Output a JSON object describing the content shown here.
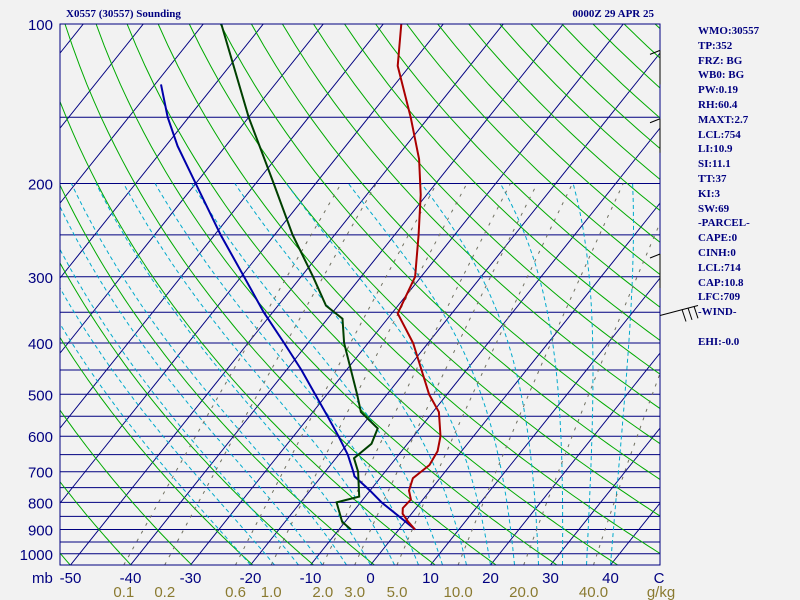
{
  "header": {
    "station_title": "X0557 (30557) Sounding",
    "valid_time": "0000Z 29 APR 25"
  },
  "stats": [
    "WMO:30557",
    "TP:352",
    "FRZ: BG",
    "WB0: BG",
    "PW:0.19",
    "RH:60.4",
    "MAXT:2.7",
    "LCL:754",
    "LI:10.9",
    "SI:11.1",
    "TT:37",
    "KI:3",
    "SW:69",
    "-PARCEL-",
    "CAPE:0",
    "CINH:0",
    "LCL:714",
    "CAP:10.8",
    "LFC:709",
    "-WIND-",
    "",
    "EHI:-0.0"
  ],
  "colors": {
    "background": "#f2f2f2",
    "isobar": "#000080",
    "isotherm": "#000080",
    "dry_adiabat": "#00aa00",
    "moist_adiabat": "#00aacc",
    "mixing_ratio": "#707060",
    "temperature": "#aa0000",
    "dewpoint": "#004000",
    "parcel": "#0000aa",
    "text": "#000080",
    "mixing_label": "#8a7a30"
  },
  "chart_data": {
    "type": "skew-t",
    "pressure_unit_label": "mb",
    "pressure_ticks": [
      100,
      200,
      300,
      400,
      500,
      600,
      700,
      800,
      900,
      1000
    ],
    "isobars": [
      100,
      150,
      200,
      250,
      300,
      350,
      400,
      450,
      500,
      550,
      600,
      650,
      700,
      750,
      800,
      850,
      900,
      950,
      1000
    ],
    "temperature_ticks": [
      "-50",
      "-40",
      "-30",
      "-20",
      "-10",
      "0",
      "10",
      "20",
      "30",
      "40",
      "C"
    ],
    "temperature_tick_values": [
      -50,
      -40,
      -30,
      -20,
      -10,
      0,
      10,
      20,
      30,
      40
    ],
    "mixing_ratio_unit_label": "g/kg",
    "mixing_ratio_ticks": [
      "0.1",
      "0.2",
      "0.6",
      "1.0",
      "2.0",
      "3.0",
      "5.0",
      "10.0",
      "20.0",
      "40.0"
    ],
    "mixing_ratio_values": [
      0.1,
      0.2,
      0.6,
      1.0,
      2.0,
      3.0,
      5.0,
      10.0,
      20.0,
      40.0
    ],
    "temperature": [
      {
        "p": 900,
        "t": 2.7
      },
      {
        "p": 870,
        "t": 0.5
      },
      {
        "p": 840,
        "t": -1.5
      },
      {
        "p": 820,
        "t": -2.2
      },
      {
        "p": 790,
        "t": -2.0
      },
      {
        "p": 760,
        "t": -3.5
      },
      {
        "p": 720,
        "t": -4.5
      },
      {
        "p": 680,
        "t": -3.5
      },
      {
        "p": 640,
        "t": -4.0
      },
      {
        "p": 600,
        "t": -5.5
      },
      {
        "p": 540,
        "t": -9.0
      },
      {
        "p": 500,
        "t": -13.0
      },
      {
        "p": 400,
        "t": -22.5
      },
      {
        "p": 352,
        "t": -29.0
      },
      {
        "p": 300,
        "t": -31.0
      },
      {
        "p": 250,
        "t": -36.0
      },
      {
        "p": 210,
        "t": -41.0
      },
      {
        "p": 180,
        "t": -46.0
      },
      {
        "p": 150,
        "t": -53.0
      },
      {
        "p": 120,
        "t": -62.0
      },
      {
        "p": 100,
        "t": -67.0
      }
    ],
    "dewpoint": [
      {
        "p": 900,
        "t": -8.0
      },
      {
        "p": 870,
        "t": -10.5
      },
      {
        "p": 800,
        "t": -14.0
      },
      {
        "p": 780,
        "t": -11.0
      },
      {
        "p": 700,
        "t": -14.5
      },
      {
        "p": 660,
        "t": -17.0
      },
      {
        "p": 620,
        "t": -16.0
      },
      {
        "p": 580,
        "t": -17.0
      },
      {
        "p": 540,
        "t": -22.0
      },
      {
        "p": 500,
        "t": -25.0
      },
      {
        "p": 400,
        "t": -34.0
      },
      {
        "p": 360,
        "t": -37.5
      },
      {
        "p": 340,
        "t": -42.0
      },
      {
        "p": 300,
        "t": -48.0
      },
      {
        "p": 250,
        "t": -57.0
      },
      {
        "p": 200,
        "t": -67.0
      },
      {
        "p": 150,
        "t": -80.0
      },
      {
        "p": 100,
        "t": -97.0
      }
    ],
    "parcel": [
      {
        "p": 900,
        "t": 2.7
      },
      {
        "p": 860,
        "t": -0.8
      },
      {
        "p": 800,
        "t": -6.5
      },
      {
        "p": 760,
        "t": -10.0
      },
      {
        "p": 714,
        "t": -14.5
      },
      {
        "p": 700,
        "t": -15.3
      },
      {
        "p": 650,
        "t": -18.5
      },
      {
        "p": 600,
        "t": -22.5
      },
      {
        "p": 550,
        "t": -27.0
      },
      {
        "p": 500,
        "t": -32.0
      },
      {
        "p": 450,
        "t": -37.5
      },
      {
        "p": 400,
        "t": -44.0
      },
      {
        "p": 350,
        "t": -51.5
      },
      {
        "p": 300,
        "t": -59.5
      },
      {
        "p": 250,
        "t": -69.0
      },
      {
        "p": 200,
        "t": -80.0
      },
      {
        "p": 170,
        "t": -88.0
      },
      {
        "p": 150,
        "t": -93.5
      },
      {
        "p": 130,
        "t": -99.0
      }
    ],
    "winds": [
      {
        "p": 130,
        "barbs": 1
      },
      {
        "p": 175,
        "barbs": 1
      },
      {
        "p": 315,
        "barbs": 1
      },
      {
        "p": 355,
        "barbs": 3
      }
    ],
    "grid": true
  }
}
